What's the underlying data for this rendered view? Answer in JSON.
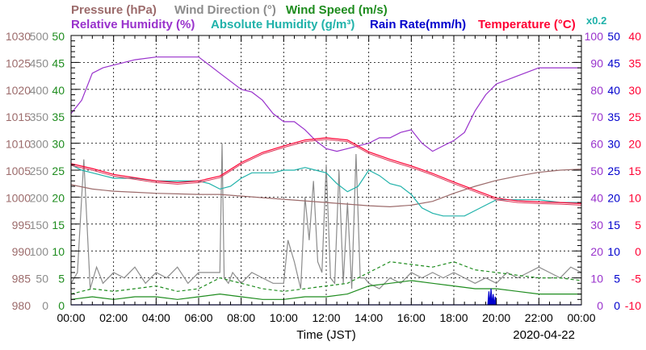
{
  "chart_data": {
    "type": "line",
    "legend": [
      {
        "label": "Pressure (hPa)",
        "color": "#9c6b6b"
      },
      {
        "label": "Wind Direction (°)",
        "color": "#8c8c8c"
      },
      {
        "label": "Wind Speed (m/s)",
        "color": "#1e8c1e"
      },
      {
        "label": "Relative Humidity (%)",
        "color": "#9932cc"
      },
      {
        "label": "Absolute Humidity (g/m³)",
        "color": "#20b2aa"
      },
      {
        "label": "Rain Rate(mm/h)",
        "color": "#0000cd"
      },
      {
        "label": "Temperature (°C)",
        "color": "#ff0033"
      }
    ],
    "rain_scale_note": "x0.2",
    "xlabel": "Time (JST)",
    "date": "2020-04-22",
    "x_ticks": [
      "00:00",
      "02:00",
      "04:00",
      "06:00",
      "08:00",
      "10:00",
      "12:00",
      "14:00",
      "16:00",
      "18:00",
      "20:00",
      "22:00",
      "00:00"
    ],
    "axes": {
      "pressure": {
        "range": [
          980,
          1030
        ],
        "ticks": [
          "980",
          "985",
          "990",
          "995",
          "1000",
          "1005",
          "1010",
          "1015",
          "1020",
          "1025",
          "1030"
        ],
        "color": "#9c6b6b"
      },
      "wind_direction": {
        "range": [
          0,
          500
        ],
        "ticks": [
          "0",
          "50",
          "100",
          "150",
          "200",
          "250",
          "300",
          "350",
          "400",
          "450",
          "500"
        ],
        "color": "#8c8c8c"
      },
      "wind_speed": {
        "range": [
          0,
          50
        ],
        "ticks": [
          "0",
          "5",
          "10",
          "15",
          "20",
          "25",
          "30",
          "35",
          "40",
          "45",
          "50"
        ],
        "color": "#1e8c1e"
      },
      "relative_humidity": {
        "range": [
          0,
          100
        ],
        "ticks": [
          "0",
          "10",
          "20",
          "30",
          "40",
          "50",
          "60",
          "70",
          "80",
          "90",
          "100"
        ],
        "color": "#9932cc"
      },
      "rain_rate": {
        "range": [
          0,
          50
        ],
        "ticks": [
          "0",
          "5",
          "10",
          "15",
          "20",
          "25",
          "30",
          "35",
          "40",
          "45",
          "50"
        ],
        "color": "#0000cd"
      },
      "temperature": {
        "range": [
          -10,
          40
        ],
        "ticks": [
          "-10",
          "-5",
          "0",
          "5",
          "10",
          "15",
          "20",
          "25",
          "30",
          "35",
          "40"
        ],
        "color": "#ff0033"
      }
    },
    "x_range_hours": [
      0,
      24
    ],
    "series": [
      {
        "key": "pressure",
        "axis": "pressure",
        "color": "#9c6b6b",
        "x": [
          0,
          1,
          2,
          3,
          4,
          5,
          6,
          7,
          8,
          9,
          10,
          11,
          12,
          13,
          14,
          15,
          16,
          17,
          18,
          19,
          20,
          21,
          22,
          23,
          24
        ],
        "y": [
          1002.3,
          1001.5,
          1001.1,
          1000.9,
          1000.7,
          1000.6,
          1000.5,
          1000.5,
          1000.2,
          999.9,
          999.6,
          999.3,
          999.0,
          998.7,
          998.4,
          998.2,
          998.5,
          999.2,
          1000.7,
          1002.0,
          1003.1,
          1003.9,
          1004.6,
          1005.0,
          1005.2
        ]
      },
      {
        "key": "temperature",
        "axis": "temperature",
        "color": "#ff0033",
        "x": [
          0,
          1,
          2,
          3,
          4,
          5,
          6,
          7,
          8,
          9,
          10,
          11,
          12,
          13,
          14,
          15,
          16,
          17,
          18,
          19,
          20,
          21,
          22,
          23,
          24
        ],
        "y": [
          16.2,
          15.3,
          14.2,
          13.6,
          13.0,
          12.7,
          13.0,
          13.9,
          16.4,
          18.3,
          19.5,
          20.6,
          21.0,
          20.6,
          18.4,
          17.0,
          15.8,
          14.4,
          12.8,
          11.3,
          9.8,
          9.3,
          9.1,
          9.0,
          8.8
        ]
      },
      {
        "key": "relative_humidity",
        "axis": "relative_humidity",
        "color": "#9932cc",
        "x": [
          0,
          0.5,
          1,
          1.5,
          2,
          2.5,
          3,
          4,
          5,
          6,
          6.5,
          7,
          7.5,
          8,
          8.5,
          9,
          9.5,
          10,
          10.5,
          11,
          11.5,
          12,
          12.5,
          13,
          13.5,
          14,
          14.5,
          15,
          15.5,
          16,
          16.5,
          17,
          17.5,
          18,
          18.5,
          19,
          19.5,
          20,
          21,
          22,
          23,
          24
        ],
        "y": [
          71,
          76,
          86,
          88,
          89,
          90,
          91,
          92,
          92,
          92,
          89,
          86,
          83,
          80,
          79,
          76,
          71,
          68,
          68,
          65,
          61,
          58,
          57,
          58,
          59,
          60,
          62,
          62,
          64,
          65,
          60,
          57,
          59,
          61,
          64,
          72,
          78,
          82,
          85,
          88,
          88,
          88
        ]
      },
      {
        "key": "absolute_humidity",
        "axis": "wind_speed",
        "color": "#20b2aa",
        "x": [
          0,
          0.5,
          1,
          1.5,
          2,
          3,
          4,
          5,
          6,
          6.5,
          7,
          7.5,
          8,
          8.5,
          9,
          9.5,
          10,
          10.5,
          11,
          11.5,
          12,
          12.5,
          13,
          13.5,
          14,
          14.5,
          15,
          15.5,
          16,
          16.5,
          17,
          17.5,
          18,
          18.5,
          19,
          19.5,
          20,
          21,
          22,
          23,
          24
        ],
        "y": [
          26,
          25,
          24.5,
          24,
          23.5,
          23.5,
          23,
          23,
          23,
          22.5,
          21.5,
          22,
          23.5,
          24.5,
          24.5,
          24.5,
          25,
          25,
          25.5,
          25,
          24.5,
          22.5,
          21,
          22,
          25,
          24,
          22.5,
          22,
          20.5,
          18,
          17,
          16.5,
          16.5,
          16.5,
          17.5,
          18.5,
          19.5,
          19.5,
          19.5,
          19,
          19
        ]
      },
      {
        "key": "wind_direction",
        "axis": "wind_direction",
        "color": "#8c8c8c",
        "x": [
          0,
          0.3,
          0.6,
          0.9,
          1.2,
          1.5,
          2,
          2.5,
          3,
          3.5,
          4,
          4.5,
          5,
          5.5,
          6,
          6.5,
          7,
          7.1,
          7.2,
          7.4,
          7.6,
          7.8,
          8,
          8.5,
          9,
          9.5,
          10,
          10.2,
          10.5,
          10.8,
          11,
          11.2,
          11.4,
          11.6,
          11.8,
          12,
          12.2,
          12.4,
          12.6,
          12.8,
          13,
          13.2,
          13.4,
          13.6,
          13.8,
          14,
          14.5,
          15,
          15.5,
          16,
          16.5,
          17,
          17.5,
          18,
          18.5,
          19,
          19.5,
          20,
          20.5,
          21,
          21.5,
          22,
          22.5,
          23,
          23.5,
          24
        ],
        "y": [
          40,
          60,
          270,
          30,
          70,
          40,
          60,
          50,
          70,
          40,
          60,
          50,
          70,
          40,
          60,
          60,
          60,
          300,
          50,
          40,
          60,
          50,
          40,
          60,
          50,
          40,
          40,
          120,
          80,
          30,
          200,
          120,
          230,
          80,
          60,
          260,
          50,
          40,
          250,
          40,
          190,
          30,
          280,
          50,
          50,
          40,
          30,
          50,
          40,
          60,
          50,
          60,
          50,
          60,
          50,
          40,
          50,
          40,
          60,
          50,
          60,
          70,
          60,
          50,
          70,
          60
        ]
      },
      {
        "key": "wind_speed_max",
        "axis": "wind_speed",
        "color": "#1e8c1e",
        "dashed": true,
        "x": [
          0,
          1,
          2,
          3,
          4,
          5,
          6,
          7,
          8,
          9,
          10,
          11,
          12,
          13,
          14,
          15,
          16,
          17,
          18,
          19,
          20,
          21,
          22,
          23,
          24
        ],
        "y": [
          2,
          3,
          2.5,
          3,
          3.5,
          2.5,
          3,
          5,
          4,
          3,
          2.5,
          3,
          3.5,
          4,
          6,
          8,
          7.5,
          7,
          8,
          6.5,
          6,
          5.5,
          5,
          5,
          4.5
        ]
      },
      {
        "key": "wind_speed",
        "axis": "wind_speed",
        "color": "#1e8c1e",
        "x": [
          0,
          1,
          2,
          3,
          4,
          5,
          6,
          7,
          8,
          9,
          10,
          11,
          12,
          13,
          14,
          15,
          16,
          17,
          18,
          19,
          20,
          21,
          22,
          23,
          24
        ],
        "y": [
          1,
          1.5,
          1,
          1.5,
          1.5,
          1,
          1.5,
          2,
          1.5,
          1,
          1,
          1.5,
          1.5,
          2,
          3.5,
          4,
          4.5,
          4,
          3.5,
          3,
          3,
          2.5,
          2,
          2,
          2
        ]
      },
      {
        "key": "rain_rate",
        "axis": "rain_rate",
        "color": "#0000cd",
        "x": [
          0,
          19.6,
          19.65,
          19.7,
          19.75,
          19.8,
          19.85,
          19.9,
          19.95,
          20.0,
          24
        ],
        "y": [
          0,
          0,
          2.5,
          0,
          3,
          0,
          2,
          0,
          1.5,
          0,
          0
        ]
      }
    ]
  }
}
